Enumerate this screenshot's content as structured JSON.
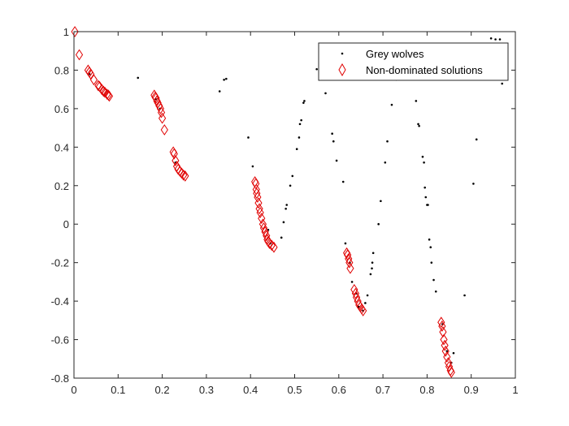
{
  "chart_data": {
    "type": "scatter",
    "title": "",
    "xlabel": "",
    "ylabel": "",
    "xlim": [
      0,
      1
    ],
    "ylim": [
      -0.8,
      1
    ],
    "x_ticks": [
      "0",
      "0.1",
      "0.2",
      "0.3",
      "0.4",
      "0.5",
      "0.6",
      "0.7",
      "0.8",
      "0.9",
      "1"
    ],
    "y_ticks": [
      "-0.8",
      "-0.6",
      "-0.4",
      "-0.2",
      "0",
      "0.2",
      "0.4",
      "0.6",
      "0.8",
      "1"
    ],
    "grid": false,
    "legend_position": "top-right",
    "series": [
      {
        "name": "Grey wolves",
        "marker": "dot",
        "color": "#000000",
        "points": [
          [
            0.035,
            0.78
          ],
          [
            0.055,
            0.7
          ],
          [
            0.145,
            0.76
          ],
          [
            0.185,
            0.65
          ],
          [
            0.195,
            0.6
          ],
          [
            0.23,
            0.32
          ],
          [
            0.33,
            0.69
          ],
          [
            0.34,
            0.75
          ],
          [
            0.345,
            0.755
          ],
          [
            0.395,
            0.45
          ],
          [
            0.405,
            0.3
          ],
          [
            0.44,
            -0.03
          ],
          [
            0.445,
            -0.1
          ],
          [
            0.47,
            -0.07
          ],
          [
            0.475,
            0.01
          ],
          [
            0.48,
            0.08
          ],
          [
            0.482,
            0.1
          ],
          [
            0.49,
            0.2
          ],
          [
            0.495,
            0.25
          ],
          [
            0.505,
            0.39
          ],
          [
            0.51,
            0.45
          ],
          [
            0.512,
            0.52
          ],
          [
            0.515,
            0.54
          ],
          [
            0.52,
            0.63
          ],
          [
            0.522,
            0.64
          ],
          [
            0.55,
            0.805
          ],
          [
            0.57,
            0.68
          ],
          [
            0.585,
            0.47
          ],
          [
            0.588,
            0.43
          ],
          [
            0.595,
            0.33
          ],
          [
            0.61,
            0.22
          ],
          [
            0.615,
            -0.1
          ],
          [
            0.625,
            -0.2
          ],
          [
            0.63,
            -0.3
          ],
          [
            0.64,
            -0.36
          ],
          [
            0.645,
            -0.43
          ],
          [
            0.655,
            -0.45
          ],
          [
            0.66,
            -0.41
          ],
          [
            0.665,
            -0.37
          ],
          [
            0.672,
            -0.26
          ],
          [
            0.675,
            -0.23
          ],
          [
            0.676,
            -0.2
          ],
          [
            0.678,
            -0.15
          ],
          [
            0.69,
            0.0
          ],
          [
            0.695,
            0.12
          ],
          [
            0.705,
            0.32
          ],
          [
            0.71,
            0.43
          ],
          [
            0.72,
            0.62
          ],
          [
            0.73,
            0.75
          ],
          [
            0.775,
            0.64
          ],
          [
            0.78,
            0.52
          ],
          [
            0.782,
            0.51
          ],
          [
            0.79,
            0.35
          ],
          [
            0.793,
            0.32
          ],
          [
            0.795,
            0.19
          ],
          [
            0.797,
            0.14
          ],
          [
            0.8,
            0.1
          ],
          [
            0.802,
            0.1
          ],
          [
            0.805,
            -0.08
          ],
          [
            0.808,
            -0.12
          ],
          [
            0.81,
            -0.2
          ],
          [
            0.815,
            -0.29
          ],
          [
            0.82,
            -0.35
          ],
          [
            0.835,
            -0.52
          ],
          [
            0.845,
            -0.66
          ],
          [
            0.855,
            -0.72
          ],
          [
            0.86,
            -0.67
          ],
          [
            0.885,
            -0.37
          ],
          [
            0.905,
            0.21
          ],
          [
            0.912,
            0.44
          ],
          [
            0.945,
            0.965
          ],
          [
            0.955,
            0.96
          ],
          [
            0.965,
            0.96
          ],
          [
            0.97,
            0.73
          ]
        ]
      },
      {
        "name": "Non-dominated solutions",
        "marker": "diamond",
        "color": "#e00000",
        "points": [
          [
            0.002,
            1.0
          ],
          [
            0.012,
            0.88
          ],
          [
            0.032,
            0.8
          ],
          [
            0.035,
            0.79
          ],
          [
            0.038,
            0.78
          ],
          [
            0.045,
            0.75
          ],
          [
            0.055,
            0.72
          ],
          [
            0.058,
            0.715
          ],
          [
            0.063,
            0.7
          ],
          [
            0.067,
            0.69
          ],
          [
            0.07,
            0.685
          ],
          [
            0.075,
            0.675
          ],
          [
            0.078,
            0.67
          ],
          [
            0.08,
            0.665
          ],
          [
            0.182,
            0.67
          ],
          [
            0.184,
            0.66
          ],
          [
            0.186,
            0.655
          ],
          [
            0.188,
            0.64
          ],
          [
            0.19,
            0.63
          ],
          [
            0.193,
            0.615
          ],
          [
            0.196,
            0.6
          ],
          [
            0.198,
            0.58
          ],
          [
            0.2,
            0.55
          ],
          [
            0.205,
            0.49
          ],
          [
            0.225,
            0.375
          ],
          [
            0.227,
            0.365
          ],
          [
            0.23,
            0.33
          ],
          [
            0.233,
            0.3
          ],
          [
            0.236,
            0.285
          ],
          [
            0.24,
            0.275
          ],
          [
            0.244,
            0.265
          ],
          [
            0.248,
            0.255
          ],
          [
            0.252,
            0.25
          ],
          [
            0.41,
            0.22
          ],
          [
            0.412,
            0.21
          ],
          [
            0.413,
            0.18
          ],
          [
            0.414,
            0.16
          ],
          [
            0.416,
            0.14
          ],
          [
            0.418,
            0.11
          ],
          [
            0.42,
            0.08
          ],
          [
            0.422,
            0.06
          ],
          [
            0.425,
            0.03
          ],
          [
            0.428,
            0.0
          ],
          [
            0.43,
            -0.02
          ],
          [
            0.433,
            -0.04
          ],
          [
            0.436,
            -0.06
          ],
          [
            0.438,
            -0.08
          ],
          [
            0.44,
            -0.09
          ],
          [
            0.443,
            -0.1
          ],
          [
            0.448,
            -0.11
          ],
          [
            0.453,
            -0.12
          ],
          [
            0.618,
            -0.15
          ],
          [
            0.62,
            -0.16
          ],
          [
            0.622,
            -0.18
          ],
          [
            0.624,
            -0.2
          ],
          [
            0.626,
            -0.23
          ],
          [
            0.635,
            -0.34
          ],
          [
            0.638,
            -0.36
          ],
          [
            0.64,
            -0.38
          ],
          [
            0.643,
            -0.4
          ],
          [
            0.646,
            -0.42
          ],
          [
            0.649,
            -0.43
          ],
          [
            0.652,
            -0.44
          ],
          [
            0.655,
            -0.45
          ],
          [
            0.832,
            -0.51
          ],
          [
            0.834,
            -0.53
          ],
          [
            0.836,
            -0.56
          ],
          [
            0.838,
            -0.6
          ],
          [
            0.84,
            -0.63
          ],
          [
            0.842,
            -0.66
          ],
          [
            0.845,
            -0.69
          ],
          [
            0.848,
            -0.72
          ],
          [
            0.85,
            -0.74
          ],
          [
            0.853,
            -0.76
          ],
          [
            0.855,
            -0.77
          ]
        ]
      }
    ]
  }
}
